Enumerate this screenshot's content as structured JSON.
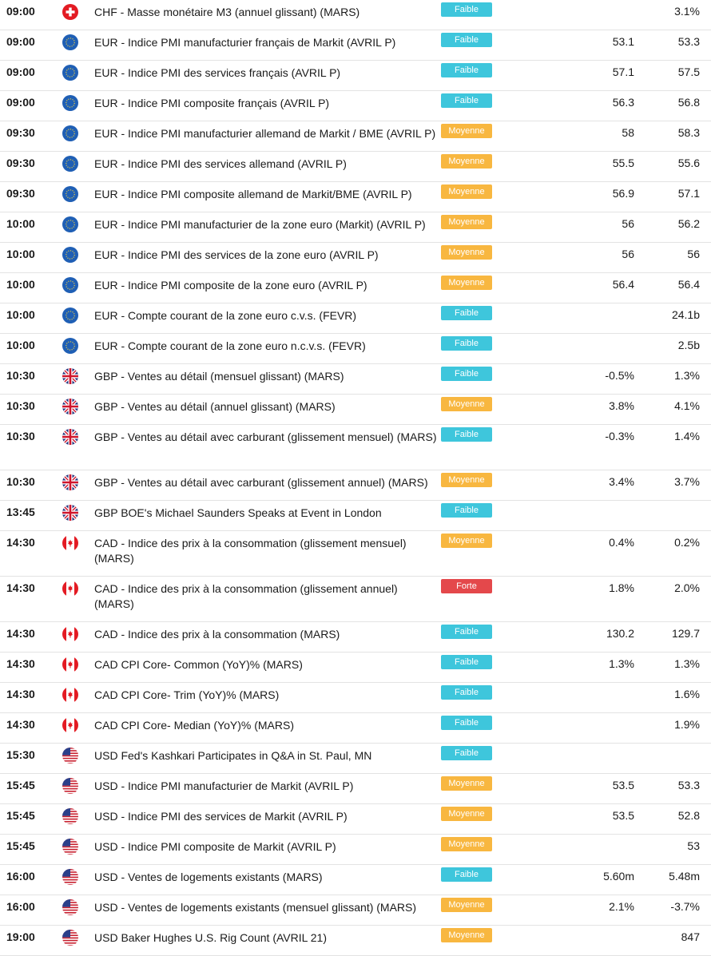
{
  "colors": {
    "faible": "#3ec6dc",
    "moyenne": "#f8b740",
    "forte": "#e4484b"
  },
  "rows": [
    {
      "time": "09:00",
      "flag": "ch-flag-icon",
      "event": "CHF - Masse monétaire M3 (annuel glissant) (MARS)",
      "impact": "Faible",
      "level": "faible",
      "forecast": "",
      "previous": "3.1%"
    },
    {
      "time": "09:00",
      "flag": "eu-flag-icon",
      "event": "EUR - Indice PMI manufacturier français de Markit (AVRIL P)",
      "impact": "Faible",
      "level": "faible",
      "forecast": "53.1",
      "previous": "53.3"
    },
    {
      "time": "09:00",
      "flag": "eu-flag-icon",
      "event": "EUR - Indice PMI des services français (AVRIL P)",
      "impact": "Faible",
      "level": "faible",
      "forecast": "57.1",
      "previous": "57.5"
    },
    {
      "time": "09:00",
      "flag": "eu-flag-icon",
      "event": "EUR - Indice PMI composite français (AVRIL P)",
      "impact": "Faible",
      "level": "faible",
      "forecast": "56.3",
      "previous": "56.8"
    },
    {
      "time": "09:30",
      "flag": "eu-flag-icon",
      "event": "EUR - Indice PMI manufacturier allemand de Markit / BME (AVRIL P)",
      "impact": "Moyenne",
      "level": "moyenne",
      "forecast": "58",
      "previous": "58.3"
    },
    {
      "time": "09:30",
      "flag": "eu-flag-icon",
      "event": "EUR - Indice PMI des services allemand (AVRIL P)",
      "impact": "Moyenne",
      "level": "moyenne",
      "forecast": "55.5",
      "previous": "55.6"
    },
    {
      "time": "09:30",
      "flag": "eu-flag-icon",
      "event": "EUR - Indice PMI composite allemand de Markit/BME (AVRIL P)",
      "impact": "Moyenne",
      "level": "moyenne",
      "forecast": "56.9",
      "previous": "57.1"
    },
    {
      "time": "10:00",
      "flag": "eu-flag-icon",
      "event": "EUR - Indice PMI manufacturier de la zone euro (Markit) (AVRIL P)",
      "impact": "Moyenne",
      "level": "moyenne",
      "forecast": "56",
      "previous": "56.2"
    },
    {
      "time": "10:00",
      "flag": "eu-flag-icon",
      "event": "EUR - Indice PMI des services de la zone euro (AVRIL P)",
      "impact": "Moyenne",
      "level": "moyenne",
      "forecast": "56",
      "previous": "56"
    },
    {
      "time": "10:00",
      "flag": "eu-flag-icon",
      "event": "EUR - Indice PMI composite de la zone euro (AVRIL P)",
      "impact": "Moyenne",
      "level": "moyenne",
      "forecast": "56.4",
      "previous": "56.4"
    },
    {
      "time": "10:00",
      "flag": "eu-flag-icon",
      "event": "EUR - Compte courant de la zone euro c.v.s. (FEVR)",
      "impact": "Faible",
      "level": "faible",
      "forecast": "",
      "previous": "24.1b"
    },
    {
      "time": "10:00",
      "flag": "eu-flag-icon",
      "event": "EUR - Compte courant de la zone euro n.c.v.s. (FEVR)",
      "impact": "Faible",
      "level": "faible",
      "forecast": "",
      "previous": "2.5b"
    },
    {
      "time": "10:30",
      "flag": "uk-flag-icon",
      "event": "GBP - Ventes au détail (mensuel glissant) (MARS)",
      "impact": "Faible",
      "level": "faible",
      "forecast": "-0.5%",
      "previous": "1.3%"
    },
    {
      "time": "10:30",
      "flag": "uk-flag-icon",
      "event": "GBP - Ventes au détail (annuel glissant) (MARS)",
      "impact": "Moyenne",
      "level": "moyenne",
      "forecast": "3.8%",
      "previous": "4.1%"
    },
    {
      "time": "10:30",
      "flag": "uk-flag-icon",
      "event": "GBP - Ventes au détail avec carburant (glissement mensuel) (MARS)",
      "impact": "Faible",
      "level": "faible",
      "forecast": "-0.3%",
      "previous": "1.4%",
      "tall": true
    },
    {
      "time": "10:30",
      "flag": "uk-flag-icon",
      "event": "GBP - Ventes au détail avec carburant (glissement annuel) (MARS)",
      "impact": "Moyenne",
      "level": "moyenne",
      "forecast": "3.4%",
      "previous": "3.7%"
    },
    {
      "time": "13:45",
      "flag": "uk-flag-icon",
      "event": "GBP BOE's Michael Saunders Speaks at Event in London",
      "impact": "Faible",
      "level": "faible",
      "forecast": "",
      "previous": ""
    },
    {
      "time": "14:30",
      "flag": "ca-flag-icon",
      "event": "CAD - Indice des prix à la consommation (glissement mensuel) (MARS)",
      "impact": "Moyenne",
      "level": "moyenne",
      "forecast": "0.4%",
      "previous": "0.2%",
      "tall": true
    },
    {
      "time": "14:30",
      "flag": "ca-flag-icon",
      "event": "CAD - Indice des prix à la consommation (glissement annuel) (MARS)",
      "impact": "Forte",
      "level": "forte",
      "forecast": "1.8%",
      "previous": "2.0%",
      "tall": true
    },
    {
      "time": "14:30",
      "flag": "ca-flag-icon",
      "event": "CAD - Indice des prix à la consommation (MARS)",
      "impact": "Faible",
      "level": "faible",
      "forecast": "130.2",
      "previous": "129.7"
    },
    {
      "time": "14:30",
      "flag": "ca-flag-icon",
      "event": "CAD CPI Core- Common (YoY)% (MARS)",
      "impact": "Faible",
      "level": "faible",
      "forecast": "1.3%",
      "previous": "1.3%"
    },
    {
      "time": "14:30",
      "flag": "ca-flag-icon",
      "event": "CAD CPI Core- Trim (YoY)% (MARS)",
      "impact": "Faible",
      "level": "faible",
      "forecast": "",
      "previous": "1.6%"
    },
    {
      "time": "14:30",
      "flag": "ca-flag-icon",
      "event": "CAD CPI Core- Median (YoY)% (MARS)",
      "impact": "Faible",
      "level": "faible",
      "forecast": "",
      "previous": "1.9%"
    },
    {
      "time": "15:30",
      "flag": "us-flag-icon",
      "event": "USD Fed's Kashkari Participates in Q&A in St. Paul, MN",
      "impact": "Faible",
      "level": "faible",
      "forecast": "",
      "previous": ""
    },
    {
      "time": "15:45",
      "flag": "us-flag-icon",
      "event": "USD - Indice PMI manufacturier de Markit (AVRIL P)",
      "impact": "Moyenne",
      "level": "moyenne",
      "forecast": "53.5",
      "previous": "53.3"
    },
    {
      "time": "15:45",
      "flag": "us-flag-icon",
      "event": "USD - Indice PMI des services de Markit (AVRIL P)",
      "impact": "Moyenne",
      "level": "moyenne",
      "forecast": "53.5",
      "previous": "52.8"
    },
    {
      "time": "15:45",
      "flag": "us-flag-icon",
      "event": "USD - Indice PMI composite de Markit (AVRIL P)",
      "impact": "Moyenne",
      "level": "moyenne",
      "forecast": "",
      "previous": "53"
    },
    {
      "time": "16:00",
      "flag": "us-flag-icon",
      "event": "USD - Ventes de logements existants (MARS)",
      "impact": "Faible",
      "level": "faible",
      "forecast": "5.60m",
      "previous": "5.48m"
    },
    {
      "time": "16:00",
      "flag": "us-flag-icon",
      "event": "USD - Ventes de logements existants (mensuel glissant) (MARS)",
      "impact": "Moyenne",
      "level": "moyenne",
      "forecast": "2.1%",
      "previous": "-3.7%"
    },
    {
      "time": "19:00",
      "flag": "us-flag-icon",
      "event": "USD Baker Hughes U.S. Rig Count (AVRIL 21)",
      "impact": "Moyenne",
      "level": "moyenne",
      "forecast": "",
      "previous": "847"
    }
  ]
}
